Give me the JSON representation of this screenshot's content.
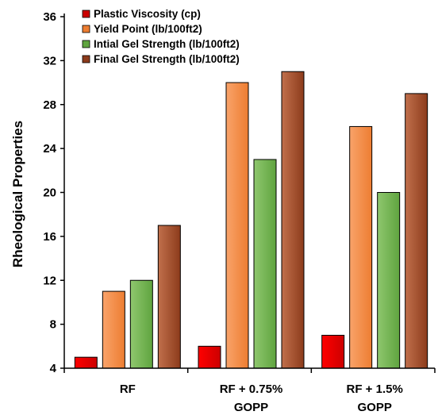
{
  "chart_data": {
    "type": "bar",
    "title": "",
    "xlabel": "",
    "ylabel": "Rheological Properties",
    "ylim": [
      4,
      36
    ],
    "yticks": [
      4,
      8,
      12,
      16,
      20,
      24,
      28,
      32,
      36
    ],
    "grid": false,
    "legend_position": "top-left",
    "categories": [
      [
        "RF"
      ],
      [
        "RF + 0.75%",
        "GOPP"
      ],
      [
        "RF + 1.5%",
        "GOPP"
      ]
    ],
    "series": [
      {
        "name": "Plastic Viscosity (cp)",
        "values": [
          5,
          6,
          7
        ],
        "color": "#ff0000",
        "color_dark": "#cc0000"
      },
      {
        "name": "Yield Point (lb/100ft2)",
        "values": [
          11,
          30,
          26
        ],
        "color": "#f9a36a",
        "color_dark": "#ed7d31"
      },
      {
        "name": "Intial Gel Strength (lb/100ft2)",
        "values": [
          12,
          23,
          20
        ],
        "color": "#8fc76e",
        "color_dark": "#5fa43f"
      },
      {
        "name": "Final Gel Strength (lb/100ft2)",
        "values": [
          17,
          31,
          29
        ],
        "color": "#c1704c",
        "color_dark": "#8c3b1b"
      }
    ]
  }
}
